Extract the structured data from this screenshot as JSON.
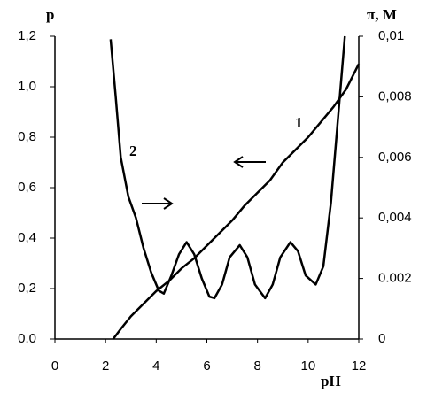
{
  "chart_data": {
    "type": "line",
    "x_label": "pH",
    "y_label": "p",
    "y2_label": "π, M",
    "xlim": [
      0,
      12
    ],
    "xticks": [
      0,
      2,
      4,
      6,
      8,
      10,
      12
    ],
    "ylim": [
      0,
      1.2
    ],
    "yticks": [
      {
        "value": 0,
        "label": "0.0"
      },
      {
        "value": 0.2,
        "label": "0,2"
      },
      {
        "value": 0.4,
        "label": "0,4"
      },
      {
        "value": 0.6,
        "label": "0,6"
      },
      {
        "value": 0.8,
        "label": "0,8"
      },
      {
        "value": 1.0,
        "label": "1,0"
      },
      {
        "value": 1.2,
        "label": "1,2"
      }
    ],
    "y2lim": [
      0,
      0.01
    ],
    "y2ticks": [
      0,
      {
        "value": 0.002,
        "label": "0.002"
      },
      {
        "value": 0.004,
        "label": "0,004"
      },
      {
        "value": 0.006,
        "label": "0,006"
      },
      {
        "value": 0.008,
        "label": "0,008"
      },
      {
        "value": 0.01,
        "label": "0,01"
      }
    ],
    "series": [
      {
        "name": "1",
        "color": "#000000",
        "x": [
          2.3,
          2.6,
          3,
          3.5,
          4,
          4.5,
          5,
          5.5,
          6,
          6.5,
          7,
          7.5,
          8,
          8.5,
          9,
          9.5,
          10,
          10.5,
          11,
          11.5,
          12
        ],
        "values": [
          0,
          0.04,
          0.09,
          0.14,
          0.19,
          0.23,
          0.28,
          0.32,
          0.37,
          0.42,
          0.47,
          0.53,
          0.58,
          0.63,
          0.7,
          0.75,
          0.8,
          0.86,
          0.92,
          0.99,
          1.09
        ]
      },
      {
        "name": "2",
        "color": "#000000",
        "axis": "y2",
        "x": [
          2.2,
          2.4,
          2.6,
          2.9,
          3.2,
          3.5,
          3.8,
          4.1,
          4.3,
          4.6,
          4.9,
          5.2,
          5.5,
          5.8,
          6.1,
          6.3,
          6.6,
          6.9,
          7.3,
          7.6,
          7.9,
          8.3,
          8.6,
          8.9,
          9.3,
          9.6,
          9.9,
          10.3,
          10.6,
          10.9,
          11.2,
          11.45
        ],
        "values": [
          0.0099,
          0.008,
          0.006,
          0.0047,
          0.004,
          0.003,
          0.0022,
          0.0016,
          0.0015,
          0.0021,
          0.0028,
          0.0032,
          0.0028,
          0.002,
          0.0014,
          0.00135,
          0.0018,
          0.0027,
          0.0031,
          0.0027,
          0.0018,
          0.00135,
          0.0018,
          0.0027,
          0.0032,
          0.0029,
          0.0021,
          0.0018,
          0.0024,
          0.0045,
          0.0075,
          0.01
        ]
      }
    ]
  }
}
